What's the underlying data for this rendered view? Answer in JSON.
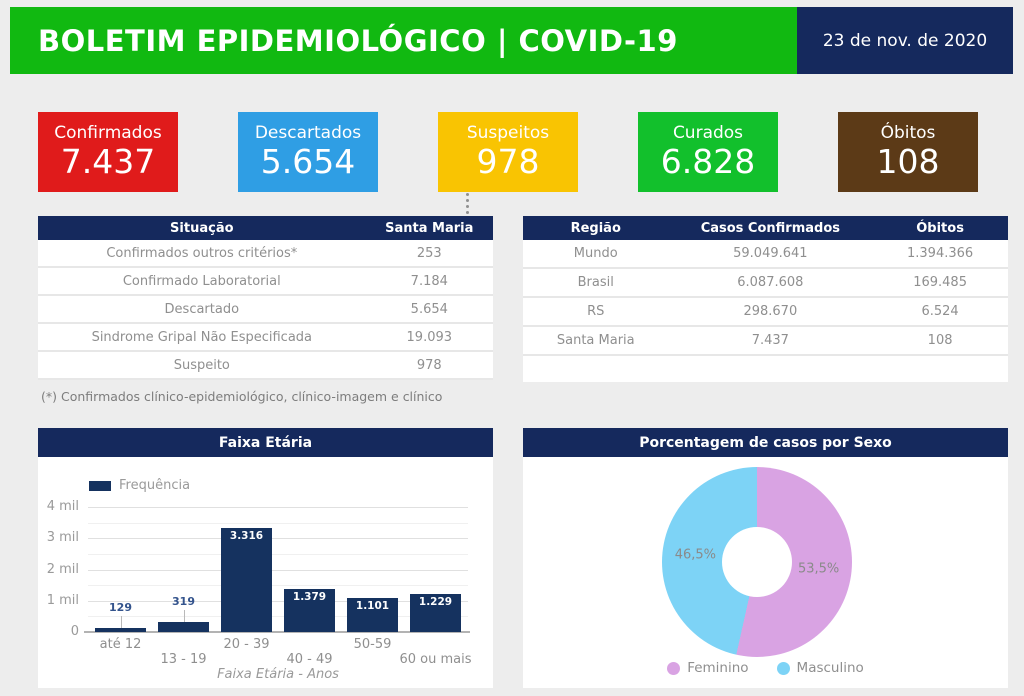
{
  "header": {
    "title": "BOLETIM EPIDEMIOLÓGICO | COVID-19",
    "date": "23 de nov. de 2020",
    "green": "#11b911",
    "navy": "#15295d"
  },
  "cards": [
    {
      "label": "Confirmados",
      "value": "7.437",
      "color": "#e01b1b"
    },
    {
      "label": "Descartados",
      "value": "5.654",
      "color": "#2f9ee4"
    },
    {
      "label": "Suspeitos",
      "value": "978",
      "color": "#f9c402"
    },
    {
      "label": "Curados",
      "value": "6.828",
      "color": "#12c02c"
    },
    {
      "label": "Óbitos",
      "value": "108",
      "color": "#5c3a17"
    }
  ],
  "situacao_table": {
    "headers": [
      "Situação",
      "Santa Maria"
    ],
    "rows": [
      [
        "Confirmados outros critérios*",
        "253"
      ],
      [
        "Confirmado Laboratorial",
        "7.184"
      ],
      [
        "Descartado",
        "5.654"
      ],
      [
        "Sindrome Gripal Não Especificada",
        "19.093"
      ],
      [
        "Suspeito",
        "978"
      ]
    ],
    "footnote": "(*) Confirmados clínico-epidemiológico, clínico-imagem e clínico"
  },
  "regiao_table": {
    "headers": [
      "Região",
      "Casos Confirmados",
      "Óbitos"
    ],
    "rows": [
      [
        "Mundo",
        "59.049.641",
        "1.394.366"
      ],
      [
        "Brasil",
        "6.087.608",
        "169.485"
      ],
      [
        "RS",
        "298.670",
        "6.524"
      ],
      [
        "Santa Maria",
        "7.437",
        "108"
      ]
    ]
  },
  "chart_data": [
    {
      "type": "bar",
      "title": "Faixa Etária",
      "legend": "Frequência",
      "categories": [
        "até 12",
        "13 - 19",
        "20 - 39",
        "40 - 49",
        "50-59",
        "60 ou mais"
      ],
      "values": [
        129,
        319,
        3316,
        1379,
        1101,
        1229
      ],
      "value_labels": [
        "129",
        "319",
        "3.316",
        "1.379",
        "1.101",
        "1.229"
      ],
      "xlabel": "Faixa Etária - Anos",
      "ylabel": "",
      "ylim": [
        0,
        4000
      ],
      "yticks": [
        [
          4000,
          "4 mil"
        ],
        [
          3000,
          "3 mil"
        ],
        [
          2000,
          "2 mil"
        ],
        [
          1000,
          "1 mil"
        ],
        [
          0,
          "0"
        ]
      ],
      "gridline_step": 500,
      "grid": true,
      "legend_position": "top-left",
      "bar_color": "#15325f"
    },
    {
      "type": "pie",
      "title": "Porcentagem de casos por Sexo",
      "labels": [
        "Feminino",
        "Masculino"
      ],
      "values": [
        53.5,
        46.5
      ],
      "value_labels": [
        "53,5%",
        "46,5%"
      ],
      "colors": [
        "#d9a3e3",
        "#7dd3f6"
      ],
      "donut": true,
      "start_angle_deg": 0,
      "legend_position": "bottom"
    }
  ]
}
